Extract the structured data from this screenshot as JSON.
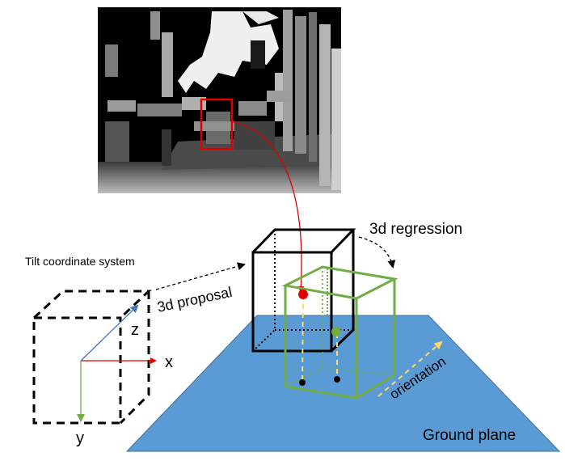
{
  "labels": {
    "tilt_system": "Tilt coordinate system",
    "proposal": "3d proposal",
    "regression": "3d regression",
    "orientation": "orientation",
    "ground_plane": "Ground plane",
    "axis_x": "x",
    "axis_y": "y",
    "axis_z": "z"
  },
  "colors": {
    "ground": "#5b9bd5",
    "regressed_box": "#70ad47",
    "highlight_box": "#e00000",
    "orientation_arrow": "#ffd966",
    "x_axis": "#e00000",
    "y_axis": "#70ad47",
    "z_axis": "#4472c4"
  }
}
